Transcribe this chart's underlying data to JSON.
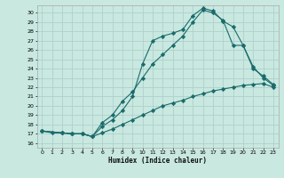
{
  "xlabel": "Humidex (Indice chaleur)",
  "bg_color": "#c8e8e0",
  "grid_color": "#b0d0cc",
  "line_color": "#1a6b6b",
  "xlim": [
    -0.5,
    23.5
  ],
  "ylim": [
    15.5,
    30.8
  ],
  "xticks": [
    0,
    1,
    2,
    3,
    4,
    5,
    6,
    7,
    8,
    9,
    10,
    11,
    12,
    13,
    14,
    15,
    16,
    17,
    18,
    19,
    20,
    21,
    22,
    23
  ],
  "yticks": [
    16,
    17,
    18,
    19,
    20,
    21,
    22,
    23,
    24,
    25,
    26,
    27,
    28,
    29,
    30
  ],
  "line1_x": [
    0,
    1,
    2,
    3,
    4,
    5,
    6,
    7,
    8,
    9,
    10,
    11,
    12,
    13,
    14,
    15,
    16,
    17,
    18,
    19,
    20,
    21,
    22,
    23
  ],
  "line1_y": [
    17.3,
    17.1,
    17.1,
    17.0,
    17.0,
    16.7,
    17.1,
    17.5,
    18.0,
    18.5,
    19.0,
    19.5,
    20.0,
    20.3,
    20.6,
    21.0,
    21.3,
    21.6,
    21.8,
    22.0,
    22.2,
    22.3,
    22.4,
    22.0
  ],
  "line2_x": [
    0,
    2,
    3,
    4,
    5,
    6,
    7,
    8,
    9,
    10,
    11,
    12,
    13,
    14,
    15,
    16,
    17,
    18,
    19,
    20,
    21,
    22,
    23
  ],
  "line2_y": [
    17.3,
    17.1,
    17.0,
    17.0,
    16.7,
    18.2,
    19.0,
    20.5,
    21.5,
    23.0,
    24.5,
    25.5,
    26.5,
    27.5,
    29.0,
    30.3,
    30.0,
    29.2,
    26.5,
    26.5,
    24.0,
    23.2,
    22.3
  ],
  "line3_x": [
    0,
    2,
    3,
    4,
    5,
    6,
    7,
    8,
    9,
    10,
    11,
    12,
    13,
    14,
    15,
    16,
    17,
    18,
    19,
    20,
    21,
    22,
    23
  ],
  "line3_y": [
    17.3,
    17.1,
    17.0,
    17.0,
    16.7,
    17.8,
    18.5,
    19.5,
    21.0,
    24.5,
    27.0,
    27.5,
    27.8,
    28.2,
    29.7,
    30.5,
    30.2,
    29.1,
    28.5,
    26.5,
    24.2,
    23.0,
    22.2
  ]
}
